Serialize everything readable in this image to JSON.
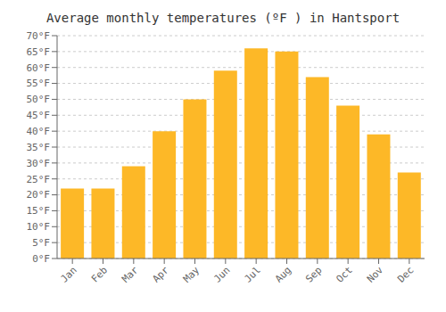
{
  "chart_data": {
    "type": "bar",
    "title": "Average monthly temperatures (ºF ) in Hantsport",
    "categories": [
      "Jan",
      "Feb",
      "Mar",
      "Apr",
      "May",
      "Jun",
      "Jul",
      "Aug",
      "Sep",
      "Oct",
      "Nov",
      "Dec"
    ],
    "values": [
      22,
      22,
      29,
      40,
      50,
      59,
      66,
      65,
      57,
      48,
      39,
      27
    ],
    "color": "#FDB827",
    "ylim": [
      0,
      70
    ],
    "yticks": [
      {
        "value": 0,
        "label": "0°F"
      },
      {
        "value": 5,
        "label": "5°F"
      },
      {
        "value": 10,
        "label": "10°F"
      },
      {
        "value": 15,
        "label": "15°F"
      },
      {
        "value": 20,
        "label": "20°F"
      },
      {
        "value": 25,
        "label": "25°F"
      },
      {
        "value": 30,
        "label": "30°F"
      },
      {
        "value": 35,
        "label": "35°F"
      },
      {
        "value": 40,
        "label": "40°F"
      },
      {
        "value": 45,
        "label": "45°F"
      },
      {
        "value": 50,
        "label": "50°F"
      },
      {
        "value": 55,
        "label": "55°F"
      },
      {
        "value": 60,
        "label": "60°F"
      },
      {
        "value": 65,
        "label": "65°F"
      },
      {
        "value": 70,
        "label": "70°F"
      }
    ],
    "grid": true
  }
}
